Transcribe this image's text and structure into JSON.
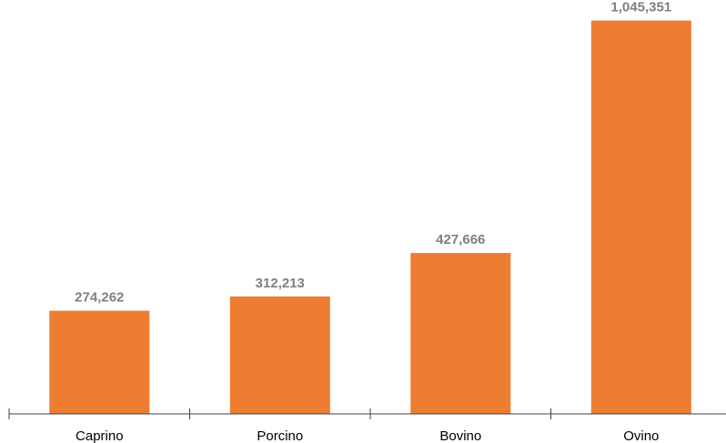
{
  "chart_data": {
    "type": "bar",
    "title": "",
    "xlabel": "",
    "ylabel": "",
    "categories": [
      "Caprino",
      "Porcino",
      "Bovino",
      "Ovino"
    ],
    "values": [
      274262,
      312213,
      427666,
      1045351
    ],
    "value_labels": [
      "274,262",
      "312,213",
      "427,666",
      "1,045,351"
    ],
    "ylim": [
      0,
      1100000
    ],
    "grid": false,
    "legend": "none",
    "bar_color": "#ED7D31",
    "data_label_color": "#7F7F7F",
    "axis_color": "#404040"
  }
}
